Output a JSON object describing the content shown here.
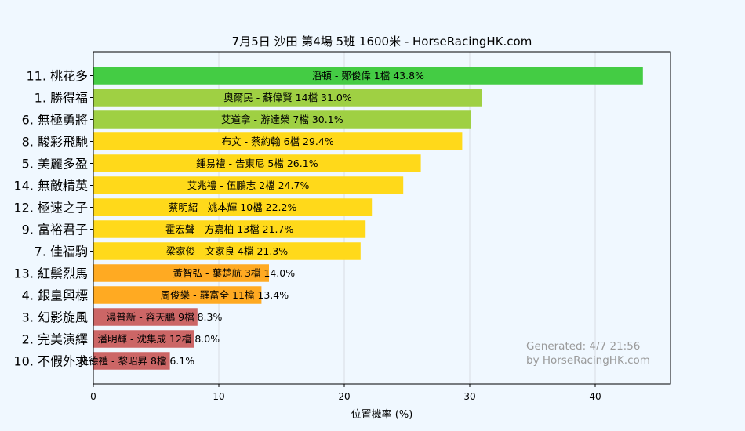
{
  "chart_data": {
    "type": "bar",
    "orientation": "horizontal",
    "title": "7月5日  沙田  第4場  5班  1600米 - HorseRacingHK.com",
    "xlabel": "位置機率 (%)",
    "ylabel": "",
    "xlim": [
      0,
      46
    ],
    "xticks": [
      0,
      10,
      20,
      30,
      40
    ],
    "grid": true,
    "categories": [
      "11. 桃花多",
      "1. 勝得福",
      "6. 無極勇將",
      "8. 駿彩飛馳",
      "5. 美麗多盈",
      "14. 無敵精英",
      "12. 極速之子",
      "9. 富裕君子",
      "7. 佳福駒",
      "13. 紅鬃烈馬",
      "4. 銀皇興標",
      "3. 幻影旋風",
      "2. 完美演繹",
      "10. 不假外求"
    ],
    "values": [
      43.8,
      31.0,
      30.1,
      29.4,
      26.1,
      24.7,
      22.2,
      21.7,
      21.3,
      14.0,
      13.4,
      8.3,
      8.0,
      6.1
    ],
    "bar_labels": [
      "潘頓 - 鄭俊偉 1檔  43.8%",
      "奧爾民 - 蘇偉賢 14檔  31.0%",
      "艾道拿 - 游達榮 7檔  30.1%",
      "布文 - 蔡約翰 6檔  29.4%",
      "鍾易禮 - 告東尼 5檔  26.1%",
      "艾兆禮 - 伍鵬志 2檔  24.7%",
      "蔡明紹 - 姚本輝 10檔  22.2%",
      "霍宏聲 - 方嘉柏 13檔  21.7%",
      "梁家俊 - 文家良 4檔  21.3%",
      "黃智弘 - 葉楚航 3檔  14.0%",
      "周俊樂 - 羅富全 11檔  13.4%",
      "湯普新 - 容天鵬 9檔  8.3%",
      "潘明輝 - 沈集成 12檔  8.0%",
      "班德禮 - 黎昭昇 8檔  6.1%"
    ],
    "colors": [
      "#44cc44",
      "#9fd043",
      "#9fd043",
      "#ffd91a",
      "#ffd91a",
      "#ffd91a",
      "#ffd91a",
      "#ffd91a",
      "#ffd91a",
      "#ffaa22",
      "#ffaa22",
      "#cc6666",
      "#cc6666",
      "#cc6666"
    ],
    "annotation": [
      "Generated: 4/7 21:56",
      "by HorseRacingHK.com"
    ]
  }
}
